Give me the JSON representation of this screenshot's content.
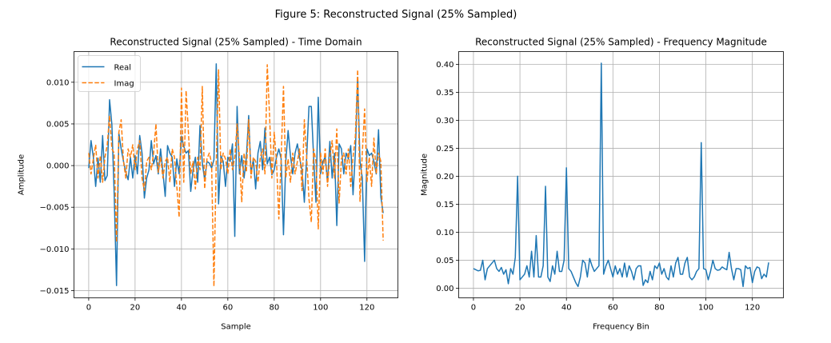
{
  "figure_title": "Figure 5: Reconstructed Signal (25% Sampled)",
  "colors": {
    "real": "#1f77b4",
    "imag": "#ff7f0e",
    "grid": "#b0b0b0"
  },
  "chart_data": [
    {
      "type": "line",
      "title": "Reconstructed Signal (25% Sampled) - Time Domain",
      "xlabel": "Sample",
      "ylabel": "Amplitude",
      "xlim": [
        -6.35,
        133.35
      ],
      "ylim": [
        -0.01587,
        0.01368
      ],
      "xticks": [
        0,
        20,
        40,
        60,
        80,
        100,
        120
      ],
      "xtick_labels": [
        "0",
        "20",
        "40",
        "60",
        "80",
        "100",
        "120"
      ],
      "yticks": [
        -0.015,
        -0.01,
        -0.005,
        0.0,
        0.005,
        0.01
      ],
      "ytick_labels": [
        "−0.015",
        "−0.010",
        "−0.005",
        "0.000",
        "0.005",
        "0.010"
      ],
      "grid": true,
      "legend": {
        "placement": "upper-left",
        "entries": [
          "Real",
          "Imag"
        ]
      },
      "series": [
        {
          "name": "Real",
          "style": "solid",
          "values": [
            -0.0003,
            0.003,
            0.001,
            -0.0025,
            0.0009,
            -0.002,
            0.0036,
            -0.0018,
            -0.0012,
            0.0079,
            0.0049,
            -0.0035,
            -0.0144,
            0.0039,
            0.002,
            0.0005,
            -0.0008,
            -0.0017,
            0.001,
            -0.0015,
            0.0012,
            -0.001,
            0.0036,
            0.0015,
            -0.0039,
            -0.0015,
            -0.0005,
            0.003,
            0.0002,
            0.0012,
            -0.001,
            0.002,
            -0.0008,
            -0.0037,
            0.0024,
            0.0015,
            0.001,
            -0.0025,
            0.0008,
            -0.001,
            0.0035,
            0.0023,
            0.0015,
            0.0018,
            -0.0031,
            -0.0005,
            0.001,
            -0.002,
            0.0048,
            0.0003,
            -0.0017,
            0.0005,
            0.0003,
            -0.0003,
            0.0007,
            0.0122,
            -0.0046,
            0.0012,
            0.0005,
            -0.0025,
            0.001,
            0.0005,
            0.0026,
            -0.0085,
            0.0071,
            -0.001,
            0.0012,
            -0.0015,
            0.001,
            0.006,
            -0.001,
            0.0008,
            -0.0028,
            0.0015,
            0.0029,
            -0.0005,
            0.0045,
            0.0002,
            0.001,
            -0.0011,
            -0.0005,
            0.001,
            0.002,
            0.0008,
            -0.0083,
            0.0005,
            0.0042,
            0.0012,
            -0.001,
            0.0015,
            0.0026,
            0.0008,
            -0.0005,
            -0.0044,
            0.001,
            0.0071,
            0.0071,
            0.001,
            -0.0044,
            0.0082,
            -0.001,
            0.0005,
            0.001,
            -0.002,
            0.0029,
            -0.0015,
            0.0015,
            -0.0072,
            0.0026,
            0.002,
            -0.001,
            0.0015,
            0.0008,
            0.0024,
            -0.0035,
            0.0015,
            0.0106,
            0.0005,
            -0.0015,
            -0.0115,
            0.002,
            0.0012,
            0.0015,
            0.0005,
            -0.001,
            0.0043,
            -0.0038,
            -0.0057
          ]
        },
        {
          "name": "Imag",
          "style": "dashed",
          "values": [
            0.0015,
            -0.001,
            0.0008,
            0.0025,
            -0.0015,
            0.0012,
            -0.002,
            0.001,
            0.0025,
            0.006,
            0.002,
            0.0015,
            -0.0092,
            0.004,
            0.0055,
            0.0005,
            -0.0015,
            0.002,
            0.001,
            0.0025,
            -0.0005,
            0.002,
            0.003,
            -0.0015,
            -0.003,
            0.0005,
            0.001,
            -0.0005,
            0.0015,
            0.005,
            -0.0008,
            0.001,
            -0.0015,
            0.0005,
            0.001,
            -0.002,
            0.002,
            0.001,
            -0.0025,
            -0.0062,
            0.0093,
            -0.002,
            0.009,
            0.004,
            -0.001,
            0.0005,
            -0.0028,
            0.001,
            -0.0005,
            0.0095,
            -0.0028,
            0.0008,
            0.0015,
            0.0003,
            -0.0145,
            0.0003,
            0.0115,
            -0.0005,
            0.0015,
            0.0008,
            -0.001,
            0.002,
            -0.0005,
            0.001,
            0.005,
            0.001,
            -0.0044,
            0.0015,
            -0.0008,
            0.0055,
            -0.0015,
            0.001,
            0.0005,
            -0.002,
            0.001,
            0.002,
            -0.001,
            0.0121,
            0.006,
            -0.0015,
            0.004,
            0.0005,
            -0.0064,
            0.001,
            0.0095,
            -0.0015,
            0.0008,
            -0.002,
            0.0015,
            -0.001,
            0.0005,
            0.002,
            -0.003,
            0.0055,
            0.001,
            -0.004,
            -0.0068,
            0.002,
            0.0005,
            -0.0076,
            0.0015,
            -0.001,
            0.002,
            -0.0025,
            0.0012,
            0.003,
            -0.0015,
            0.0044,
            -0.0045,
            0.0008,
            0.0015,
            -0.001,
            0.002,
            -0.0025,
            0.001,
            0.0035,
            0.0115,
            -0.0043,
            0.0015,
            0.0068,
            -0.002,
            0.001,
            -0.0025,
            0.0033,
            -0.001,
            0.0015,
            0.0005,
            -0.009
          ]
        }
      ]
    },
    {
      "type": "line",
      "title": "Reconstructed Signal (25% Sampled) - Frequency Magnitude",
      "xlabel": "Frequency Bin",
      "ylabel": "Magnitude",
      "xlim": [
        -6.35,
        133.35
      ],
      "ylim": [
        -0.0172,
        0.4227
      ],
      "xticks": [
        0,
        20,
        40,
        60,
        80,
        100,
        120
      ],
      "xtick_labels": [
        "0",
        "20",
        "40",
        "60",
        "80",
        "100",
        "120"
      ],
      "yticks": [
        0.0,
        0.05,
        0.1,
        0.15,
        0.2,
        0.25,
        0.3,
        0.35,
        0.4
      ],
      "ytick_labels": [
        "0.00",
        "0.05",
        "0.10",
        "0.15",
        "0.20",
        "0.25",
        "0.30",
        "0.35",
        "0.40"
      ],
      "grid": true,
      "series": [
        {
          "name": "Magnitude",
          "style": "solid",
          "values": [
            0.035,
            0.033,
            0.031,
            0.032,
            0.05,
            0.015,
            0.035,
            0.04,
            0.045,
            0.05,
            0.035,
            0.03,
            0.037,
            0.025,
            0.033,
            0.008,
            0.035,
            0.025,
            0.055,
            0.2,
            0.015,
            0.02,
            0.025,
            0.04,
            0.02,
            0.066,
            0.02,
            0.094,
            0.02,
            0.02,
            0.04,
            0.182,
            0.02,
            0.012,
            0.04,
            0.025,
            0.066,
            0.03,
            0.03,
            0.05,
            0.215,
            0.035,
            0.03,
            0.02,
            0.01,
            0.003,
            0.02,
            0.05,
            0.045,
            0.02,
            0.053,
            0.04,
            0.03,
            0.035,
            0.04,
            0.402,
            0.025,
            0.04,
            0.05,
            0.035,
            0.02,
            0.04,
            0.025,
            0.035,
            0.02,
            0.045,
            0.02,
            0.04,
            0.03,
            0.015,
            0.035,
            0.04,
            0.04,
            0.005,
            0.015,
            0.01,
            0.03,
            0.015,
            0.04,
            0.035,
            0.045,
            0.025,
            0.035,
            0.02,
            0.015,
            0.04,
            0.02,
            0.045,
            0.055,
            0.025,
            0.025,
            0.045,
            0.055,
            0.02,
            0.015,
            0.02,
            0.03,
            0.035,
            0.26,
            0.035,
            0.033,
            0.015,
            0.03,
            0.05,
            0.035,
            0.032,
            0.033,
            0.038,
            0.035,
            0.033,
            0.064,
            0.035,
            0.015,
            0.035,
            0.035,
            0.033,
            0.003,
            0.04,
            0.035,
            0.037,
            0.01,
            0.03,
            0.038,
            0.036,
            0.017,
            0.025,
            0.02,
            0.046
          ]
        }
      ]
    }
  ]
}
